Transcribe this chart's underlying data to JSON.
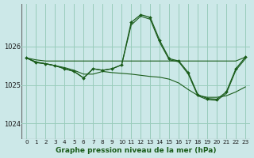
{
  "title": "Graphe pression niveau de la mer (hPa)",
  "bg_color": "#cce8e8",
  "grid_color": "#99ccbb",
  "line_color": "#1a5c1a",
  "xlim": [
    -0.5,
    23.5
  ],
  "ylim": [
    1023.6,
    1027.1
  ],
  "xticks": [
    0,
    1,
    2,
    3,
    4,
    5,
    6,
    7,
    8,
    9,
    10,
    11,
    12,
    13,
    14,
    15,
    16,
    17,
    18,
    19,
    20,
    21,
    22,
    23
  ],
  "yticks": [
    1024,
    1025,
    1026
  ],
  "series": {
    "flat_line": [
      1025.7,
      1025.65,
      1025.62,
      1025.62,
      1025.62,
      1025.62,
      1025.62,
      1025.62,
      1025.62,
      1025.62,
      1025.62,
      1025.62,
      1025.62,
      1025.62,
      1025.62,
      1025.62,
      1025.62,
      1025.62,
      1025.62,
      1025.62,
      1025.62,
      1025.62,
      1025.62,
      1025.72
    ],
    "descent_line": [
      1025.7,
      1025.6,
      1025.55,
      1025.5,
      1025.45,
      1025.38,
      1025.28,
      1025.28,
      1025.35,
      1025.32,
      1025.3,
      1025.28,
      1025.25,
      1025.22,
      1025.2,
      1025.15,
      1025.05,
      1024.88,
      1024.73,
      1024.68,
      1024.68,
      1024.72,
      1024.82,
      1024.95
    ],
    "main_line": [
      1025.7,
      1025.58,
      1025.55,
      1025.5,
      1025.42,
      1025.35,
      1025.18,
      1025.42,
      1025.38,
      1025.42,
      1025.52,
      1026.62,
      1026.82,
      1026.75,
      1026.15,
      1025.68,
      1025.62,
      1025.32,
      1024.75,
      1024.65,
      1024.63,
      1024.82,
      1025.42,
      1025.72
    ],
    "close_line": [
      1025.7,
      1025.58,
      1025.55,
      1025.5,
      1025.42,
      1025.35,
      1025.18,
      1025.42,
      1025.38,
      1025.42,
      1025.52,
      1026.55,
      1026.78,
      1026.7,
      1026.1,
      1025.65,
      1025.6,
      1025.28,
      1024.72,
      1024.62,
      1024.6,
      1024.78,
      1025.38,
      1025.68
    ]
  }
}
